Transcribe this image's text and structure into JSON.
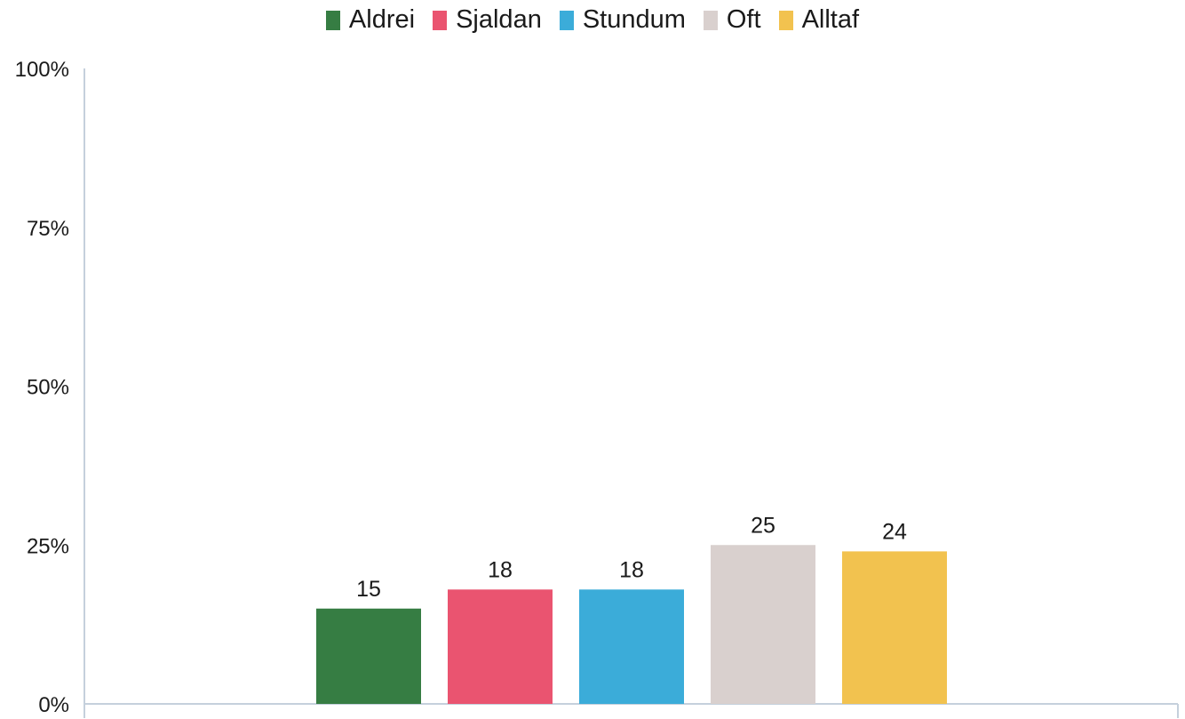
{
  "chart_data": {
    "type": "bar",
    "categories": [
      "Aldrei",
      "Sjaldan",
      "Stundum",
      "Oft",
      "Alltaf"
    ],
    "values": [
      15,
      18,
      18,
      25,
      24
    ],
    "colors": [
      "#367d43",
      "#ea5470",
      "#3bacd9",
      "#d9d0ce",
      "#f2c24f"
    ],
    "ylim": [
      0,
      100
    ],
    "yticks": [
      "0%",
      "25%",
      "50%",
      "75%",
      "100%"
    ],
    "ytick_values": [
      0,
      25,
      50,
      75,
      100
    ],
    "legend_position": "top-center",
    "grid": false,
    "axis_color": "#c5d0dc"
  }
}
